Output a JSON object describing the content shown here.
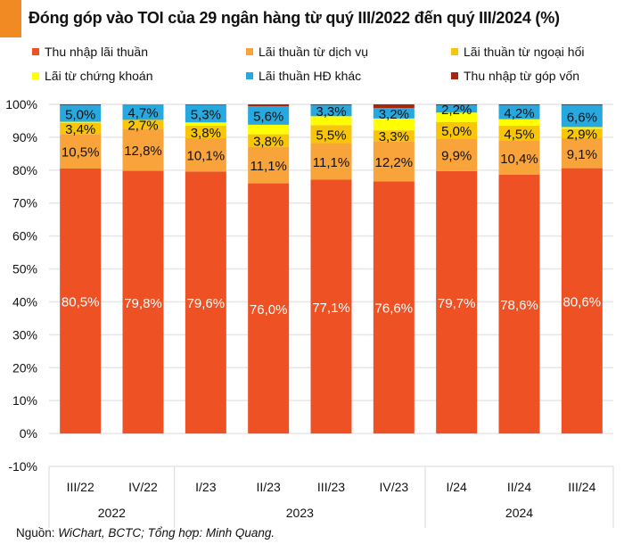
{
  "chart_data": {
    "type": "bar",
    "stacked": true,
    "title": "Đóng góp vào TOI của 29 ngân hàng từ quý III/2022 đến quý III/2024 (%)",
    "xlabel": "",
    "ylabel": "",
    "ylim": [
      -10,
      100
    ],
    "yticks": [
      "-10%",
      "0%",
      "10%",
      "20%",
      "30%",
      "40%",
      "50%",
      "60%",
      "70%",
      "80%",
      "90%",
      "100%"
    ],
    "yticks_values": [
      -10,
      0,
      10,
      20,
      30,
      40,
      50,
      60,
      70,
      80,
      90,
      100
    ],
    "grid": true,
    "legend_position": "top",
    "categories": [
      "III/22",
      "IV/22",
      "I/23",
      "II/23",
      "III/23",
      "IV/23",
      "I/24",
      "II/24",
      "III/24"
    ],
    "groups": [
      {
        "label": "2022",
        "count": 2
      },
      {
        "label": "2023",
        "count": 4
      },
      {
        "label": "2024",
        "count": 3
      }
    ],
    "series": [
      {
        "name": "Thu nhập lãi thuần",
        "color": "#EE5124",
        "labelColor": "#ffffff",
        "values": [
          80.5,
          79.8,
          79.6,
          76.0,
          77.1,
          76.6,
          79.7,
          78.6,
          80.6
        ],
        "labels": [
          "80,5%",
          "79,8%",
          "79,6%",
          "76,0%",
          "77,1%",
          "76,6%",
          "79,7%",
          "78,6%",
          "80,6%"
        ]
      },
      {
        "name": "Lãi thuần từ dịch vụ",
        "color": "#F9A33B",
        "labelColor": "#111111",
        "values": [
          10.5,
          12.8,
          10.1,
          11.1,
          11.1,
          12.2,
          9.9,
          10.4,
          9.1
        ],
        "labels": [
          "10,5%",
          "12,8%",
          "10,1%",
          "11,1%",
          "11,1%",
          "12,2%",
          "9,9%",
          "10,4%",
          "9,1%"
        ]
      },
      {
        "name": "Lãi thuần từ ngoại hối",
        "color": "#F8C507",
        "labelColor": "#111111",
        "values": [
          3.4,
          2.7,
          3.8,
          3.8,
          5.5,
          3.3,
          5.0,
          4.5,
          2.9
        ],
        "labels": [
          "3,4%",
          "2,7%",
          "3,8%",
          "3,8%",
          "5,5%",
          "3,3%",
          "5,0%",
          "4,5%",
          "2,9%"
        ]
      },
      {
        "name": "Lãi từ chứng khoán",
        "color": "#FFFF00",
        "labelColor": "#111111",
        "values": [
          0.3,
          0.0,
          1.0,
          2.9,
          2.7,
          3.6,
          2.9,
          2.0,
          0.5
        ],
        "labels": null
      },
      {
        "name": "Lãi thuần HĐ khác",
        "color": "#27A8DF",
        "labelColor": "#111111",
        "values": [
          5.0,
          4.7,
          5.3,
          5.6,
          3.3,
          3.2,
          2.2,
          4.2,
          6.6
        ],
        "labels": [
          "5,0%",
          "4,7%",
          "5,3%",
          "5,6%",
          "3,3%",
          "3,2%",
          "2,2%",
          "4,2%",
          "6,6%"
        ]
      },
      {
        "name": "Thu nhập từ góp vốn",
        "color": "#A3280F",
        "labelColor": "#111111",
        "values": [
          0.3,
          0.0,
          0.2,
          0.6,
          0.3,
          1.1,
          0.3,
          0.3,
          0.3
        ],
        "labels": null
      }
    ]
  },
  "source": {
    "prefix": "Nguồn: ",
    "text": "WiChart, BCTC; Tổng hợp: Minh Quang."
  }
}
